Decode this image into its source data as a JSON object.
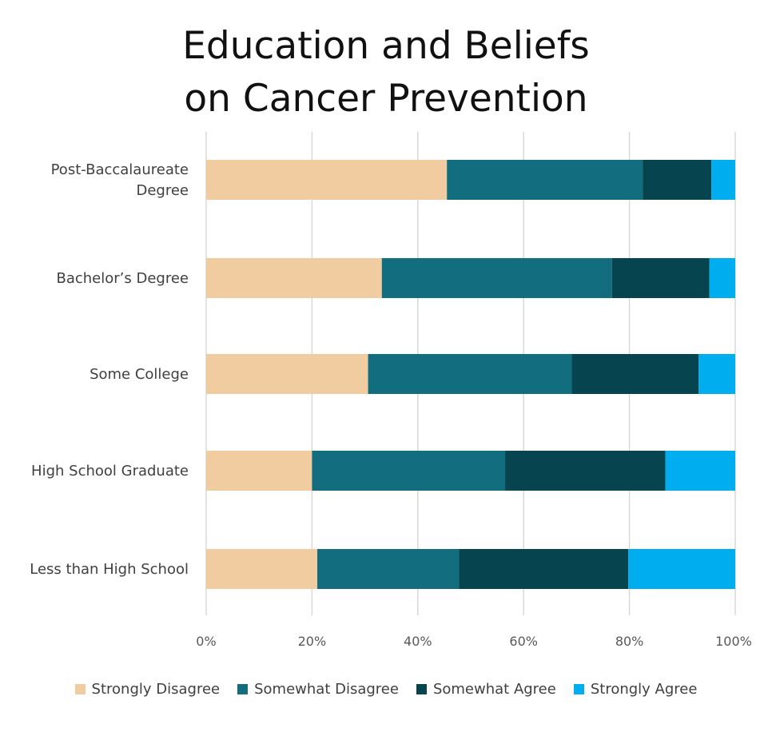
{
  "chart_data": {
    "type": "bar",
    "orientation": "horizontal",
    "stacked": "percent",
    "title": "Education and Beliefs on Cancer Prevention",
    "title_lines": [
      "Education and Beliefs",
      "on Cancer Prevention"
    ],
    "categories": [
      [
        "Post-Baccalaureate",
        "Degree"
      ],
      [
        "Bachelor’s Degree"
      ],
      [
        "Some College"
      ],
      [
        "High School Graduate"
      ],
      [
        "Less than High School"
      ]
    ],
    "series": [
      {
        "name": "Strongly Disagree",
        "color": "#F0CCA0",
        "values": [
          45.5,
          33.2,
          30.6,
          20.0,
          21.0
        ]
      },
      {
        "name": "Somewhat Disagree",
        "color": "#126E7E",
        "values": [
          37.0,
          43.5,
          38.5,
          36.5,
          26.8
        ]
      },
      {
        "name": "Somewhat Agree",
        "color": "#064550",
        "values": [
          13.0,
          18.4,
          24.0,
          30.3,
          32.0
        ]
      },
      {
        "name": "Strongly Agree",
        "color": "#00AEEF",
        "values": [
          4.5,
          4.9,
          6.9,
          13.2,
          20.2
        ]
      }
    ],
    "xticks": [
      "0%",
      "20%",
      "40%",
      "60%",
      "80%",
      "100%"
    ],
    "xlim": [
      0,
      100
    ],
    "grid": true,
    "legend_position": "bottom",
    "xlabel": "",
    "ylabel": ""
  }
}
